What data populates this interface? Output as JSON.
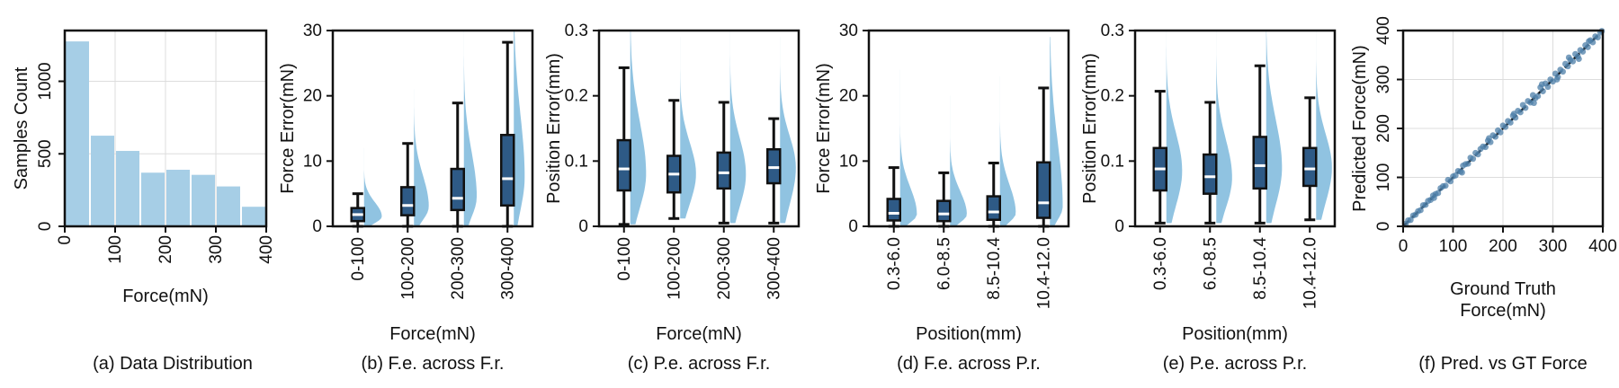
{
  "colors": {
    "hist_bar": "#a6cee6",
    "box_fill": "#2e5a86",
    "violin": "#7db8dc",
    "median": "#ffffff",
    "scatter": "#4d7fa8",
    "diag_line": "#111111",
    "grid": "#dddddd"
  },
  "chart_data": [
    {
      "id": "a",
      "type": "bar",
      "caption": "(a) Data Distribution",
      "xlabel": "Force(mN)",
      "ylabel": "Samples Count",
      "xlim": [
        0,
        400
      ],
      "ylim": [
        0,
        1350
      ],
      "xticks": [
        0,
        100,
        200,
        300,
        400
      ],
      "yticks": [
        0,
        500,
        1000
      ],
      "grid": true,
      "bins": [
        {
          "x0": 0,
          "x1": 50,
          "value": 1275
        },
        {
          "x0": 50,
          "x1": 100,
          "value": 625
        },
        {
          "x0": 100,
          "x1": 150,
          "value": 520
        },
        {
          "x0": 150,
          "x1": 200,
          "value": 370
        },
        {
          "x0": 200,
          "x1": 250,
          "value": 390
        },
        {
          "x0": 250,
          "x1": 300,
          "value": 355
        },
        {
          "x0": 300,
          "x1": 350,
          "value": 275
        },
        {
          "x0": 350,
          "x1": 400,
          "value": 135
        }
      ]
    },
    {
      "id": "b",
      "type": "box-violin",
      "caption": "(b) F.e. across F.r.",
      "xlabel": "Force(mN)",
      "ylabel": "Force Error(mN)",
      "ylim": [
        0,
        30
      ],
      "yticks": [
        0,
        10,
        20,
        30
      ],
      "yticklabels": [
        "0",
        "10",
        "20",
        "30"
      ],
      "categories": [
        "0-100",
        "100-200",
        "200-300",
        "300-400"
      ],
      "boxes": [
        {
          "whislo": 0,
          "q1": 0.8,
          "med": 1.8,
          "q3": 2.8,
          "whishi": 5.0,
          "violin_max": 12,
          "violin_mode": 1.5,
          "violin_width": 0.9
        },
        {
          "whislo": 0,
          "q1": 1.7,
          "med": 3.2,
          "q3": 6.0,
          "whishi": 12.7,
          "violin_max": 21,
          "violin_mode": 3.0,
          "violin_width": 0.75
        },
        {
          "whislo": 0,
          "q1": 2.5,
          "med": 4.3,
          "q3": 8.8,
          "whishi": 18.9,
          "violin_max": 30,
          "violin_mode": 4.5,
          "violin_width": 0.65
        },
        {
          "whislo": 0,
          "q1": 3.2,
          "med": 7.3,
          "q3": 14.0,
          "whishi": 28.2,
          "violin_max": 30,
          "violin_mode": 7.5,
          "violin_width": 0.55
        }
      ]
    },
    {
      "id": "c",
      "type": "box-violin",
      "caption": "(c) P.e. across F.r.",
      "xlabel": "Force(mN)",
      "ylabel": "Position Error(mm)",
      "ylim": [
        0,
        0.3
      ],
      "yticks": [
        0,
        0.1,
        0.2,
        0.3
      ],
      "yticklabels": [
        "0",
        "0.1",
        "0.2",
        "0.3"
      ],
      "categories": [
        "0-100",
        "100-200",
        "200-300",
        "300-400"
      ],
      "boxes": [
        {
          "whislo": 0.003,
          "q1": 0.055,
          "med": 0.088,
          "q3": 0.132,
          "whishi": 0.243,
          "violin_max": 0.3,
          "violin_mode": 0.08,
          "violin_width": 0.8
        },
        {
          "whislo": 0.012,
          "q1": 0.052,
          "med": 0.08,
          "q3": 0.108,
          "whishi": 0.193,
          "violin_max": 0.29,
          "violin_mode": 0.08,
          "violin_width": 0.8
        },
        {
          "whislo": 0.005,
          "q1": 0.058,
          "med": 0.082,
          "q3": 0.113,
          "whishi": 0.19,
          "violin_max": 0.3,
          "violin_mode": 0.08,
          "violin_width": 0.8
        },
        {
          "whislo": 0.005,
          "q1": 0.066,
          "med": 0.09,
          "q3": 0.118,
          "whishi": 0.165,
          "violin_max": 0.29,
          "violin_mode": 0.09,
          "violin_width": 0.8
        }
      ]
    },
    {
      "id": "d",
      "type": "box-violin",
      "caption": "(d) F.e. across P.r.",
      "xlabel": "Position(mm)",
      "ylabel": "Force Error(mN)",
      "ylim": [
        0,
        30
      ],
      "yticks": [
        0,
        10,
        20,
        30
      ],
      "yticklabels": [
        "0",
        "10",
        "20",
        "30"
      ],
      "categories": [
        "0.3-6.0",
        "6.0-8.5",
        "8.5-10.4",
        "10.4-12.0"
      ],
      "boxes": [
        {
          "whislo": 0,
          "q1": 0.9,
          "med": 2.0,
          "q3": 4.2,
          "whishi": 9.0,
          "violin_max": 24,
          "violin_mode": 1.8,
          "violin_width": 0.85
        },
        {
          "whislo": 0,
          "q1": 0.8,
          "med": 1.9,
          "q3": 3.9,
          "whishi": 8.2,
          "violin_max": 20,
          "violin_mode": 1.8,
          "violin_width": 0.85
        },
        {
          "whislo": 0,
          "q1": 1.0,
          "med": 2.2,
          "q3": 4.6,
          "whishi": 9.7,
          "violin_max": 23,
          "violin_mode": 2.0,
          "violin_width": 0.8
        },
        {
          "whislo": 0,
          "q1": 1.3,
          "med": 3.6,
          "q3": 9.8,
          "whishi": 21.2,
          "violin_max": 29,
          "violin_mode": 3.0,
          "violin_width": 0.65
        }
      ]
    },
    {
      "id": "e",
      "type": "box-violin",
      "caption": "(e) P.e. across P.r.",
      "xlabel": "Position(mm)",
      "ylabel": "Position Error(mm)",
      "ylim": [
        0,
        0.3
      ],
      "yticks": [
        0,
        0.1,
        0.2,
        0.3
      ],
      "yticklabels": [
        "0",
        "0.1",
        "0.2",
        "0.3"
      ],
      "categories": [
        "0.3-6.0",
        "6.0-8.5",
        "8.5-10.4",
        "10.4-12.0"
      ],
      "boxes": [
        {
          "whislo": 0.005,
          "q1": 0.055,
          "med": 0.088,
          "q3": 0.12,
          "whishi": 0.207,
          "violin_max": 0.3,
          "violin_mode": 0.085,
          "violin_width": 0.8
        },
        {
          "whislo": 0.005,
          "q1": 0.05,
          "med": 0.076,
          "q3": 0.11,
          "whishi": 0.19,
          "violin_max": 0.3,
          "violin_mode": 0.075,
          "violin_width": 0.8
        },
        {
          "whislo": 0.005,
          "q1": 0.058,
          "med": 0.093,
          "q3": 0.137,
          "whishi": 0.246,
          "violin_max": 0.3,
          "violin_mode": 0.09,
          "violin_width": 0.8
        },
        {
          "whislo": 0.01,
          "q1": 0.062,
          "med": 0.088,
          "q3": 0.12,
          "whishi": 0.197,
          "violin_max": 0.3,
          "violin_mode": 0.09,
          "violin_width": 0.8
        }
      ]
    },
    {
      "id": "f",
      "type": "scatter",
      "caption": "(f) Pred. vs GT Force",
      "xlabel_lines": [
        "Ground Truth",
        "Force(mN)"
      ],
      "ylabel": "Predicted Force(mN)",
      "xlim": [
        0,
        400
      ],
      "ylim": [
        0,
        400
      ],
      "xticks": [
        0,
        100,
        200,
        300,
        400
      ],
      "yticks": [
        0,
        100,
        200,
        300,
        400
      ],
      "grid": true,
      "reference_line": {
        "x": [
          0,
          400
        ],
        "y": [
          0,
          400
        ]
      },
      "points": [
        [
          5,
          5
        ],
        [
          10,
          12
        ],
        [
          15,
          13
        ],
        [
          20,
          22
        ],
        [
          25,
          24
        ],
        [
          30,
          31
        ],
        [
          35,
          33
        ],
        [
          40,
          43
        ],
        [
          45,
          44
        ],
        [
          50,
          52
        ],
        [
          55,
          54
        ],
        [
          60,
          63
        ],
        [
          65,
          66
        ],
        [
          70,
          68
        ],
        [
          75,
          78
        ],
        [
          80,
          82
        ],
        [
          85,
          83
        ],
        [
          90,
          95
        ],
        [
          95,
          92
        ],
        [
          100,
          102
        ],
        [
          105,
          104
        ],
        [
          110,
          113
        ],
        [
          115,
          112
        ],
        [
          120,
          124
        ],
        [
          125,
          127
        ],
        [
          130,
          128
        ],
        [
          135,
          140
        ],
        [
          140,
          138
        ],
        [
          145,
          150
        ],
        [
          150,
          147
        ],
        [
          155,
          158
        ],
        [
          160,
          163
        ],
        [
          165,
          162
        ],
        [
          170,
          175
        ],
        [
          175,
          172
        ],
        [
          180,
          186
        ],
        [
          185,
          183
        ],
        [
          190,
          196
        ],
        [
          195,
          192
        ],
        [
          200,
          206
        ],
        [
          205,
          203
        ],
        [
          210,
          215
        ],
        [
          215,
          212
        ],
        [
          220,
          226
        ],
        [
          225,
          222
        ],
        [
          230,
          236
        ],
        [
          235,
          233
        ],
        [
          240,
          248
        ],
        [
          245,
          242
        ],
        [
          250,
          256
        ],
        [
          255,
          253
        ],
        [
          260,
          268
        ],
        [
          265,
          262
        ],
        [
          270,
          266
        ],
        [
          275,
          284
        ],
        [
          280,
          276
        ],
        [
          285,
          292
        ],
        [
          290,
          285
        ],
        [
          295,
          300
        ],
        [
          300,
          296
        ],
        [
          305,
          312
        ],
        [
          310,
          305
        ],
        [
          315,
          320
        ],
        [
          320,
          316
        ],
        [
          325,
          332
        ],
        [
          330,
          327
        ],
        [
          335,
          340
        ],
        [
          340,
          337
        ],
        [
          345,
          352
        ],
        [
          350,
          347
        ],
        [
          355,
          360
        ],
        [
          360,
          357
        ],
        [
          365,
          370
        ],
        [
          370,
          366
        ],
        [
          375,
          380
        ],
        [
          380,
          376
        ],
        [
          385,
          388
        ],
        [
          390,
          386
        ],
        [
          395,
          396
        ],
        [
          398,
          399
        ],
        [
          62,
          58
        ],
        [
          118,
          110
        ],
        [
          172,
          180
        ],
        [
          222,
          230
        ],
        [
          262,
          252
        ],
        [
          278,
          290
        ],
        [
          308,
          300
        ],
        [
          332,
          345
        ],
        [
          352,
          342
        ],
        [
          372,
          378
        ]
      ]
    }
  ]
}
